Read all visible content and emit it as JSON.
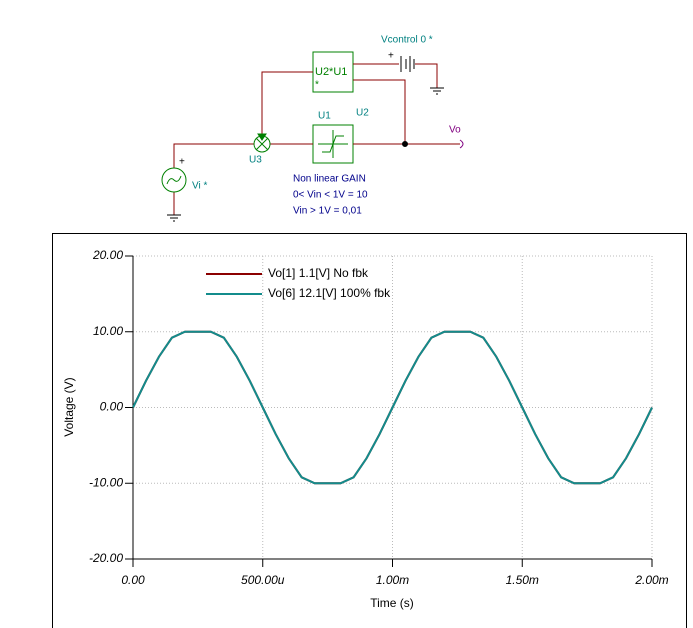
{
  "schematic": {
    "labels": [
      "Vcontrol 0 *",
      "+",
      "U2*U1",
      "*",
      "U1",
      "U2",
      "Vo",
      "U3",
      "Vi *",
      "+",
      "Non linear GAIN",
      "0< Vin < 1V = 10",
      "Vin > 1V = 0,01"
    ]
  },
  "chart_data": {
    "type": "line",
    "x": [
      0,
      5e-05,
      0.0001,
      0.00015,
      0.0002,
      0.00025,
      0.0003,
      0.00035,
      0.0004,
      0.00045,
      0.0005,
      0.00055,
      0.0006,
      0.00065,
      0.0007,
      0.00075,
      0.0008,
      0.00085,
      0.0009,
      0.00095,
      0.001,
      0.00105,
      0.0011,
      0.00115,
      0.0012,
      0.00125,
      0.0013,
      0.00135,
      0.0014,
      0.00145,
      0.0015,
      0.00155,
      0.0016,
      0.00165,
      0.0017,
      0.00175,
      0.0018,
      0.00185,
      0.0019,
      0.00195,
      0.002
    ],
    "series": [
      {
        "name": "Vo[1]  1.1[V]  No fbk",
        "color": "#8b0000",
        "values": [
          0,
          3.52,
          6.7,
          9.22,
          10,
          10,
          10,
          9.22,
          6.7,
          3.52,
          0,
          -3.52,
          -6.7,
          -9.22,
          -10,
          -10,
          -10,
          -9.22,
          -6.7,
          -3.52,
          0,
          3.52,
          6.7,
          9.22,
          10,
          10,
          10,
          9.22,
          6.7,
          3.52,
          0,
          -3.52,
          -6.7,
          -9.22,
          -10,
          -10,
          -10,
          -9.22,
          -6.7,
          -3.52,
          0
        ]
      },
      {
        "name": "Vo[6]  12.1[V] 100% fbk",
        "color": "#138c8c",
        "values": [
          0,
          3.52,
          6.7,
          9.22,
          10,
          10,
          10,
          9.22,
          6.7,
          3.52,
          0,
          -3.52,
          -6.7,
          -9.22,
          -10,
          -10,
          -10,
          -9.22,
          -6.7,
          -3.52,
          0,
          3.52,
          6.7,
          9.22,
          10,
          10,
          10,
          9.22,
          6.7,
          3.52,
          0,
          -3.52,
          -6.7,
          -9.22,
          -10,
          -10,
          -10,
          -9.22,
          -6.7,
          -3.52,
          0
        ]
      }
    ],
    "xlabel": "Time (s)",
    "ylabel": "Voltage (V)",
    "xlim": [
      0,
      0.002
    ],
    "ylim": [
      -20,
      20
    ],
    "xticks": [
      {
        "value": 0,
        "label": "0.00"
      },
      {
        "value": 0.0005,
        "label": "500.00u"
      },
      {
        "value": 0.001,
        "label": "1.00m"
      },
      {
        "value": 0.0015,
        "label": "1.50m"
      },
      {
        "value": 0.002,
        "label": "2.00m"
      }
    ],
    "yticks": [
      {
        "value": 20,
        "label": "20.00"
      },
      {
        "value": 10,
        "label": "10.00"
      },
      {
        "value": 0,
        "label": "0.00"
      },
      {
        "value": -10,
        "label": "-10.00"
      },
      {
        "value": -20,
        "label": "-20.00"
      }
    ],
    "grid": true
  }
}
